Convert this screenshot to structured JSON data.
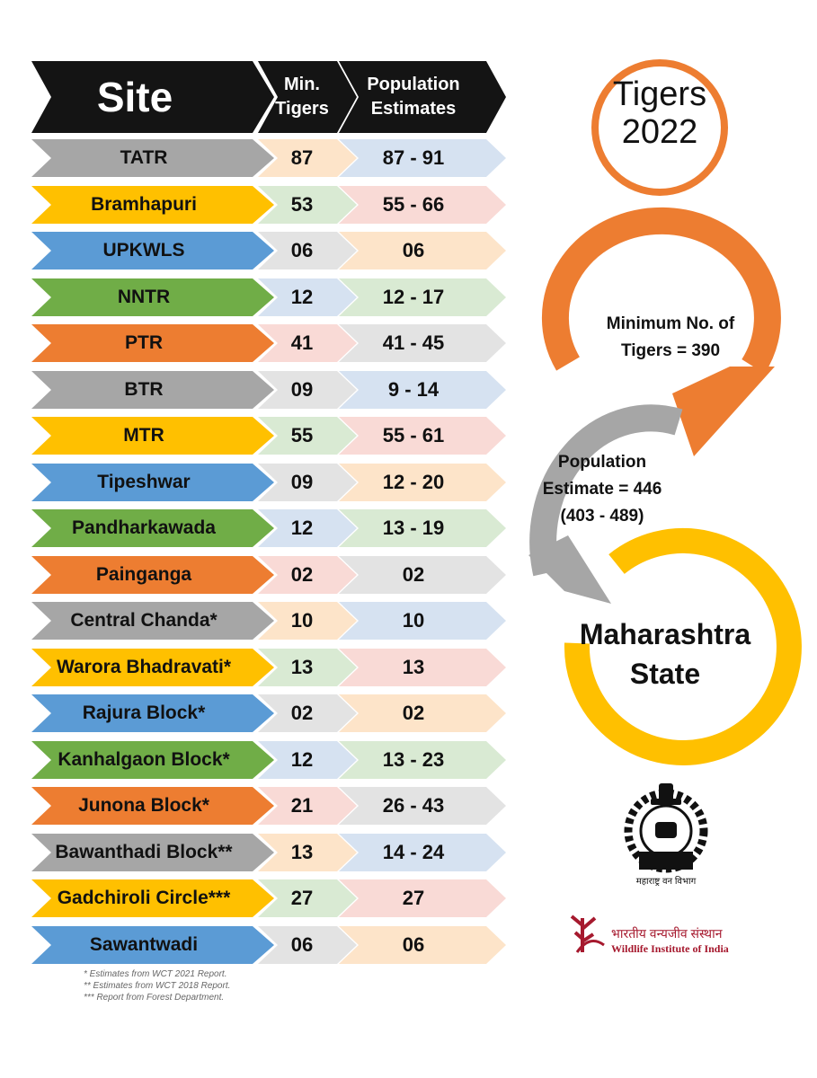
{
  "header": {
    "site_label": "Site",
    "min_tigers_line1": "Min.",
    "min_tigers_line2": "Tigers",
    "population_line1": "Population",
    "population_line2": "Estimates"
  },
  "rows": [
    {
      "site": "TATR",
      "min": "87",
      "estimate": "87 - 91",
      "site_color": "#a6a6a6",
      "min_color": "#fde4c9",
      "est_color": "#d6e2f1"
    },
    {
      "site": "Bramhapuri",
      "min": "53",
      "estimate": "55 - 66",
      "site_color": "#ffc000",
      "min_color": "#d9ead3",
      "est_color": "#f9dad6"
    },
    {
      "site": "UPKWLS",
      "min": "06",
      "estimate": "06",
      "site_color": "#5b9bd5",
      "min_color": "#e3e3e3",
      "est_color": "#fde4c9"
    },
    {
      "site": "NNTR",
      "min": "12",
      "estimate": "12 - 17",
      "site_color": "#70ad47",
      "min_color": "#d6e2f1",
      "est_color": "#d9ead3"
    },
    {
      "site": "PTR",
      "min": "41",
      "estimate": "41 - 45",
      "site_color": "#ed7d31",
      "min_color": "#f9dad6",
      "est_color": "#e3e3e3"
    },
    {
      "site": "BTR",
      "min": "09",
      "estimate": "9 - 14",
      "site_color": "#a6a6a6",
      "min_color": "#e3e3e3",
      "est_color": "#d6e2f1"
    },
    {
      "site": "MTR",
      "min": "55",
      "estimate": "55 - 61",
      "site_color": "#ffc000",
      "min_color": "#d9ead3",
      "est_color": "#f9dad6"
    },
    {
      "site": "Tipeshwar",
      "min": "09",
      "estimate": "12 - 20",
      "site_color": "#5b9bd5",
      "min_color": "#e3e3e3",
      "est_color": "#fde4c9"
    },
    {
      "site": "Pandharkawada",
      "min": "12",
      "estimate": "13 - 19",
      "site_color": "#70ad47",
      "min_color": "#d6e2f1",
      "est_color": "#d9ead3"
    },
    {
      "site": "Painganga",
      "min": "02",
      "estimate": "02",
      "site_color": "#ed7d31",
      "min_color": "#f9dad6",
      "est_color": "#e3e3e3"
    },
    {
      "site": "Central Chanda*",
      "min": "10",
      "estimate": "10",
      "site_color": "#a6a6a6",
      "min_color": "#fde4c9",
      "est_color": "#d6e2f1"
    },
    {
      "site": "Warora Bhadravati*",
      "min": "13",
      "estimate": "13",
      "site_color": "#ffc000",
      "min_color": "#d9ead3",
      "est_color": "#f9dad6"
    },
    {
      "site": "Rajura Block*",
      "min": "02",
      "estimate": "02",
      "site_color": "#5b9bd5",
      "min_color": "#e3e3e3",
      "est_color": "#fde4c9"
    },
    {
      "site": "Kanhalgaon Block*",
      "min": "12",
      "estimate": "13 - 23",
      "site_color": "#70ad47",
      "min_color": "#d6e2f1",
      "est_color": "#d9ead3"
    },
    {
      "site": "Junona Block*",
      "min": "21",
      "estimate": "26 - 43",
      "site_color": "#ed7d31",
      "min_color": "#f9dad6",
      "est_color": "#e3e3e3"
    },
    {
      "site": "Bawanthadi Block**",
      "min": "13",
      "estimate": "14 - 24",
      "site_color": "#a6a6a6",
      "min_color": "#fde4c9",
      "est_color": "#d6e2f1"
    },
    {
      "site": "Gadchiroli Circle***",
      "min": "27",
      "estimate": "27",
      "site_color": "#ffc000",
      "min_color": "#d9ead3",
      "est_color": "#f9dad6"
    },
    {
      "site": "Sawantwadi",
      "min": "06",
      "estimate": "06",
      "site_color": "#5b9bd5",
      "min_color": "#e3e3e3",
      "est_color": "#fde4c9"
    }
  ],
  "footnotes": [
    "* Estimates from WCT 2021 Report.",
    "** Estimates from WCT 2018 Report.",
    "*** Report from Forest Department."
  ],
  "badge": {
    "line1": "Tigers",
    "line2": "2022"
  },
  "summary": {
    "min_line1": "Minimum  No. of",
    "min_line2": "Tigers = 390",
    "pop_line1": "Population",
    "pop_line2": "Estimate = 446",
    "pop_line3": "(403 - 489)",
    "state_line1": "Maharashtra",
    "state_line2": "State"
  },
  "forest_dept_caption": "महाराष्ट्र वन विभाग",
  "forest_dept_emblem_text": "म.व.",
  "wii": {
    "hindi": "भारतीय वन्यजीव संस्थान",
    "english": "Wildlife Institute of India"
  },
  "colors": {
    "header": "#141414",
    "badge_ring": "#ed7d31",
    "arrow_orange": "#ed7d31",
    "arrow_gray": "#a6a6a6",
    "ring_yellow": "#ffc000",
    "wii_red": "#a6192e"
  }
}
